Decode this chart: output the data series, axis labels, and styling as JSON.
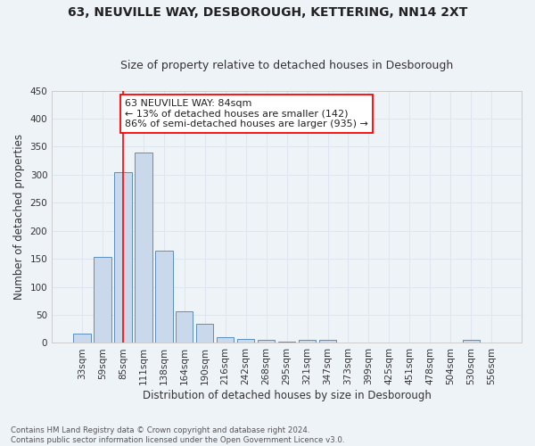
{
  "title": "63, NEUVILLE WAY, DESBOROUGH, KETTERING, NN14 2XT",
  "subtitle": "Size of property relative to detached houses in Desborough",
  "xlabel": "Distribution of detached houses by size in Desborough",
  "ylabel": "Number of detached properties",
  "footnote1": "Contains HM Land Registry data © Crown copyright and database right 2024.",
  "footnote2": "Contains public sector information licensed under the Open Government Licence v3.0.",
  "bin_labels": [
    "33sqm",
    "59sqm",
    "85sqm",
    "111sqm",
    "138sqm",
    "164sqm",
    "190sqm",
    "216sqm",
    "242sqm",
    "268sqm",
    "295sqm",
    "321sqm",
    "347sqm",
    "373sqm",
    "399sqm",
    "425sqm",
    "451sqm",
    "478sqm",
    "504sqm",
    "530sqm",
    "556sqm"
  ],
  "bar_values": [
    17,
    153,
    305,
    340,
    165,
    57,
    34,
    10,
    7,
    5,
    3,
    5,
    5,
    0,
    0,
    0,
    0,
    0,
    0,
    5,
    0
  ],
  "bar_color": "#c9d9eb",
  "bar_edge_color": "#5a8fc0",
  "red_line_x": 2,
  "annotation_text": "63 NEUVILLE WAY: 84sqm\n← 13% of detached houses are smaller (142)\n86% of semi-detached houses are larger (935) →",
  "annotation_box_color": "white",
  "annotation_box_edge_color": "red",
  "ylim": [
    0,
    450
  ],
  "yticks": [
    0,
    50,
    100,
    150,
    200,
    250,
    300,
    350,
    400,
    450
  ],
  "grid_color": "#dde6ef",
  "background_color": "#eef3f8",
  "title_fontsize": 10,
  "subtitle_fontsize": 9,
  "axis_fontsize": 8.5,
  "tick_fontsize": 7.5,
  "annotation_fontsize": 8
}
